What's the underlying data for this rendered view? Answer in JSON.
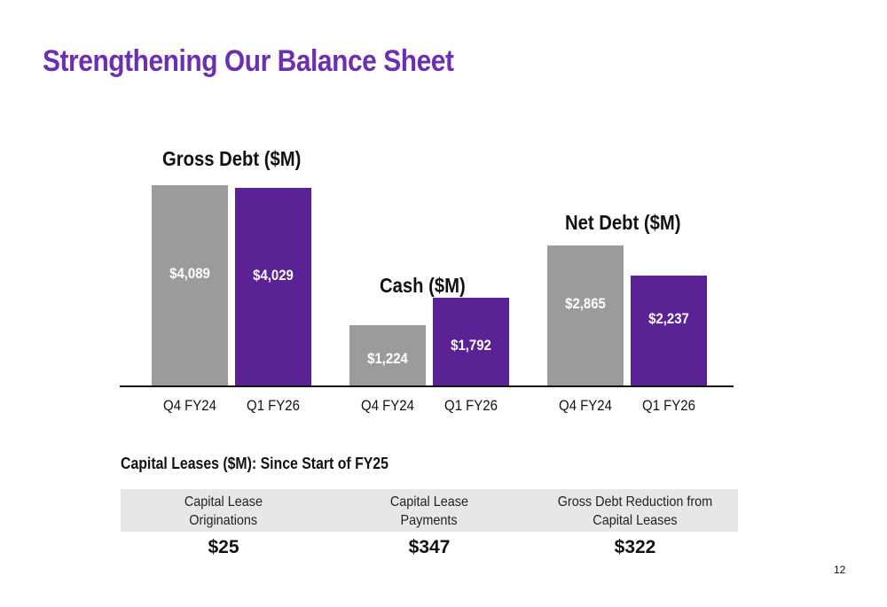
{
  "title": "Strengthening Our Balance Sheet",
  "colors": {
    "title": "#6b2fb0",
    "prior": "#9b9b9b",
    "current": "#5b2296"
  },
  "chart_data": {
    "type": "bar",
    "groups": [
      {
        "title": "Gross Debt ($M)",
        "categories": [
          "Q4 FY24",
          "Q1 FY26"
        ],
        "values": [
          4089,
          4029
        ],
        "labels": [
          "$4,089",
          "$4,029"
        ]
      },
      {
        "title": "Cash ($M)",
        "categories": [
          "Q4 FY24",
          "Q1 FY26"
        ],
        "values": [
          1224,
          1792
        ],
        "labels": [
          "$1,224",
          "$1,792"
        ]
      },
      {
        "title": "Net Debt ($M)",
        "categories": [
          "Q4 FY24",
          "Q1 FY26"
        ],
        "values": [
          2865,
          2237
        ],
        "labels": [
          "$2,865",
          "$2,237"
        ]
      }
    ],
    "ylim": [
      0,
      4200
    ],
    "grid": false
  },
  "capital_leases": {
    "heading": "Capital Leases ($M): Since Start of FY25",
    "columns": [
      {
        "line1": "Capital Lease",
        "line2": "Originations",
        "value": "$25"
      },
      {
        "line1": "Capital Lease",
        "line2": "Payments",
        "value": "$347"
      },
      {
        "line1": "Gross Debt Reduction from",
        "line2": "Capital Leases",
        "value": "$322"
      }
    ]
  },
  "page_number": "12"
}
